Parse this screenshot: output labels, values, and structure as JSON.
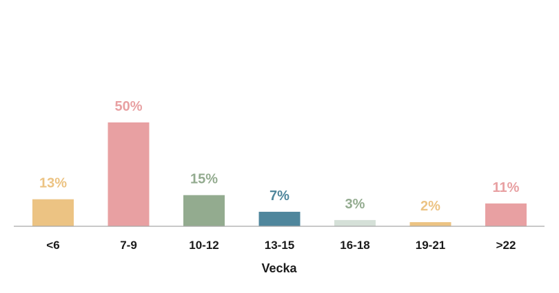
{
  "chart_data": {
    "type": "bar",
    "categories": [
      "<6",
      "7-9",
      "10-12",
      "13-15",
      "16-18",
      "19-21",
      ">22"
    ],
    "values": [
      13,
      50,
      15,
      7,
      3,
      2,
      11
    ],
    "data_labels": [
      "13%",
      "50%",
      "15%",
      "7%",
      "3%",
      "2%",
      "11%"
    ],
    "colors": [
      "#ECC383",
      "#E8A0A2",
      "#93AB8F",
      "#4F869C",
      "#D5E0D8",
      "#ECC383",
      "#E8A0A2"
    ],
    "label_colors": [
      "#ECC383",
      "#E8A0A2",
      "#93AB8F",
      "#4F869C",
      "#93AB8F",
      "#ECC383",
      "#E8A0A2"
    ],
    "title": "",
    "xlabel": "Vecka",
    "ylabel": "",
    "ylim": [
      0,
      50
    ],
    "grid": false,
    "legend": "none",
    "axis_color": "#A6A6A6"
  }
}
